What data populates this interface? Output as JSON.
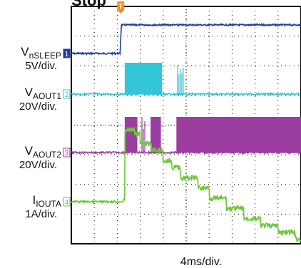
{
  "chart_data": {
    "type": "line",
    "title": "Stop",
    "xlabel": "4ms/div.",
    "trigger_marker": "T",
    "grid": true,
    "divisions": {
      "x": 10,
      "y": 8
    },
    "x_range_ms": [
      0,
      40
    ],
    "series": [
      {
        "key": "nsleep",
        "name_main": "V",
        "name_sub": "nSLEEP",
        "scale": "5V/div.",
        "marker": "1",
        "color": "#1f3f9c",
        "points": [
          [
            0,
            0
          ],
          [
            8.5,
            0
          ],
          [
            8.7,
            1
          ],
          [
            40,
            1
          ]
        ]
      },
      {
        "key": "aout1",
        "name_main": "V",
        "name_sub": "AOUT1",
        "scale": "20V/div.",
        "marker": "2",
        "color": "#33c6d8",
        "bursts": [
          {
            "start": 9.3,
            "end": 15.8,
            "solid": true
          },
          {
            "start": 18.5,
            "end": 19.6,
            "solid": false
          }
        ]
      },
      {
        "key": "aout2",
        "name_main": "V",
        "name_sub": "AOUT2",
        "scale": "20V/div.",
        "marker": "3",
        "color": "#9b3ea0",
        "bursts": [
          {
            "start": 9.3,
            "end": 11.5,
            "solid": true
          },
          {
            "start": 12.3,
            "end": 13.0,
            "solid": false
          },
          {
            "start": 13.8,
            "end": 15.6,
            "solid": true
          },
          {
            "start": 18.3,
            "end": 40,
            "solid": true
          }
        ]
      },
      {
        "key": "iouta",
        "name_main": "I",
        "name_sub": "IOUTA",
        "scale": "1A/div.",
        "marker": "4",
        "color": "#6cc83a",
        "points": [
          [
            0,
            0
          ],
          [
            9.0,
            0
          ],
          [
            9.3,
            1.05
          ],
          [
            11.0,
            1.0
          ],
          [
            12.0,
            0.85
          ],
          [
            14.0,
            0.75
          ],
          [
            16.0,
            0.6
          ],
          [
            17.5,
            0.5
          ],
          [
            19.0,
            0.35
          ],
          [
            22.0,
            0.2
          ],
          [
            24.0,
            0.05
          ],
          [
            27.0,
            -0.1
          ],
          [
            30.0,
            -0.25
          ],
          [
            33.0,
            -0.35
          ],
          [
            36.0,
            -0.45
          ],
          [
            39.0,
            -0.55
          ],
          [
            40,
            -0.55
          ]
        ]
      }
    ]
  }
}
